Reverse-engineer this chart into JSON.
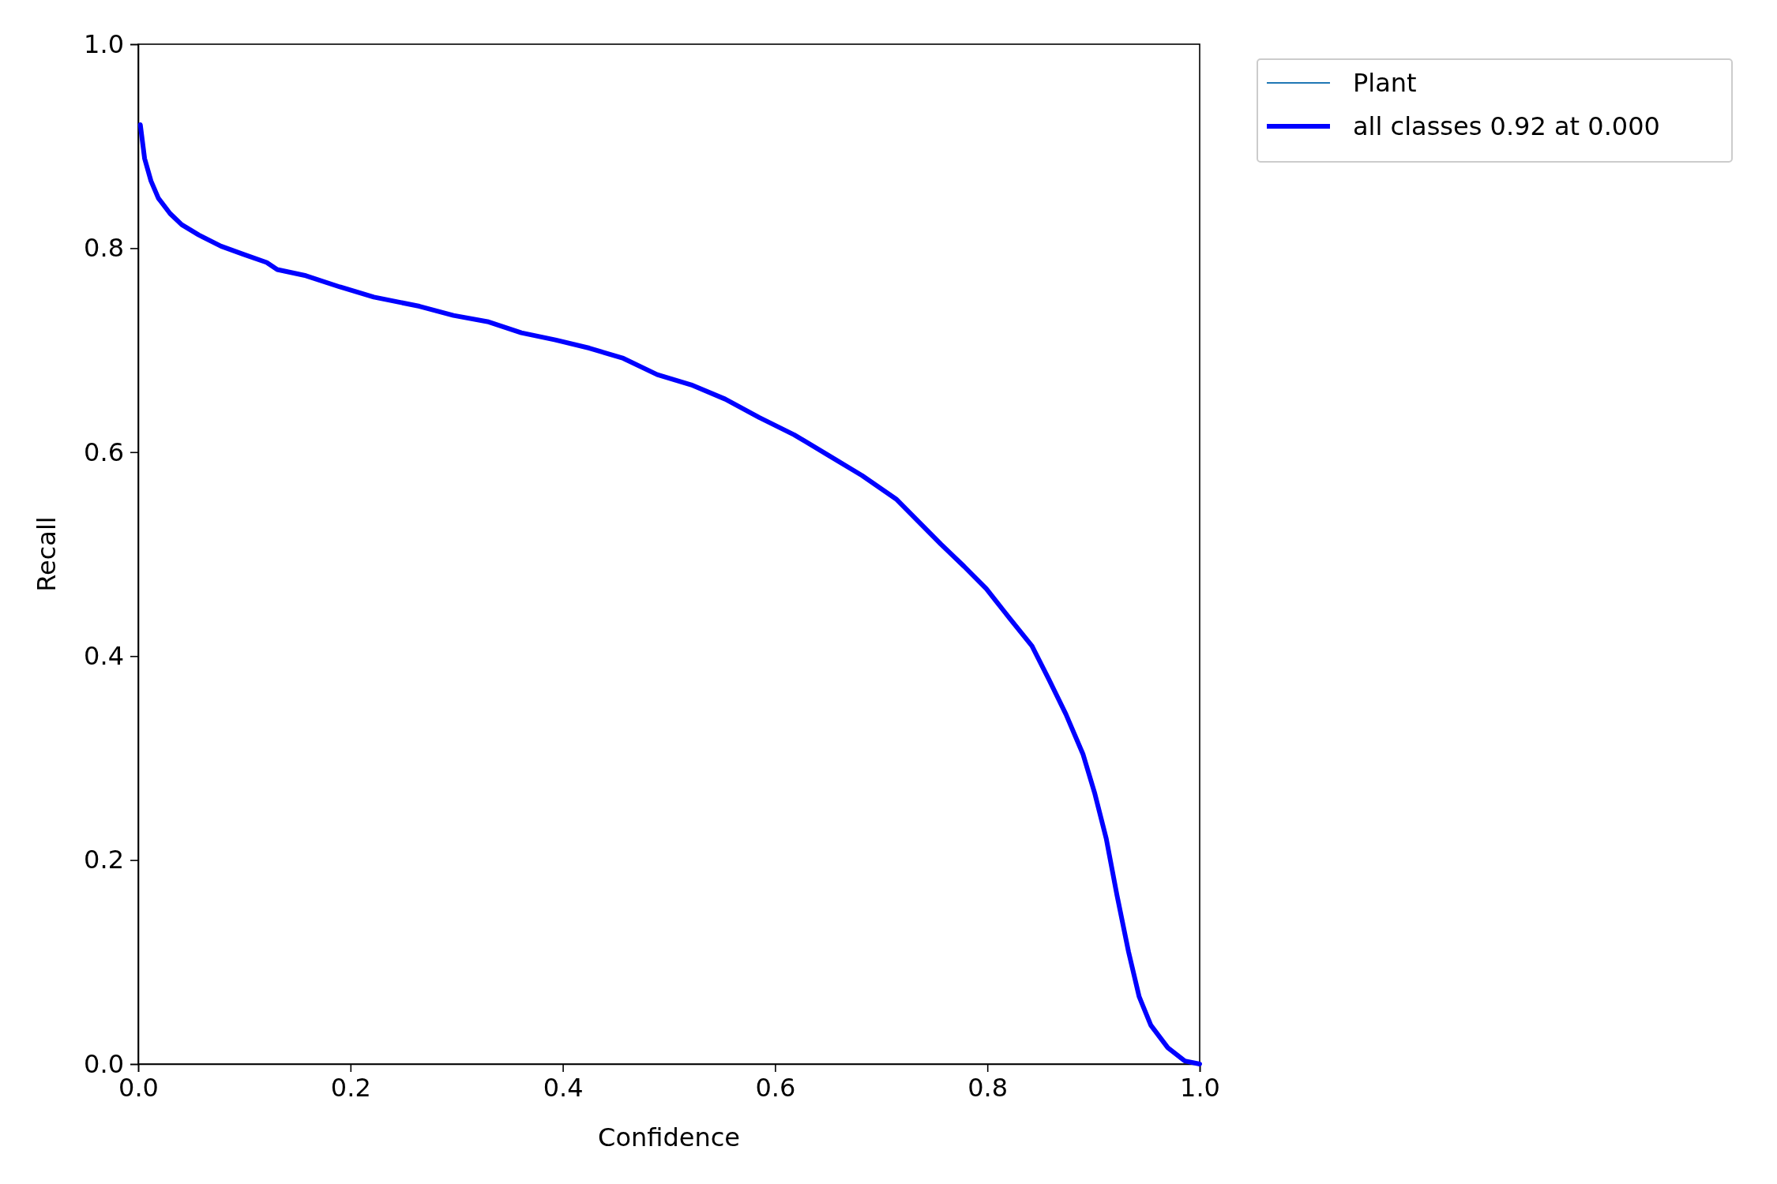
{
  "chart_data": {
    "type": "line",
    "xlabel": "Confidence",
    "ylabel": "Recall",
    "x": [
      0.002,
      0.006,
      0.012,
      0.019,
      0.03,
      0.041,
      0.057,
      0.078,
      0.099,
      0.121,
      0.131,
      0.158,
      0.19,
      0.222,
      0.265,
      0.297,
      0.329,
      0.361,
      0.393,
      0.425,
      0.457,
      0.489,
      0.521,
      0.553,
      0.585,
      0.618,
      0.65,
      0.682,
      0.714,
      0.735,
      0.756,
      0.778,
      0.799,
      0.821,
      0.842,
      0.858,
      0.874,
      0.89,
      0.901,
      0.912,
      0.922,
      0.933,
      0.943,
      0.954,
      0.97,
      0.986,
      1.0
    ],
    "series": [
      {
        "name": "Plant",
        "color": "#1f77b4",
        "values": [
          null,
          null,
          null,
          null,
          null,
          null,
          null,
          null,
          null,
          null,
          null,
          null,
          null,
          null,
          null,
          null,
          null,
          null,
          null,
          null,
          null,
          null,
          null,
          null,
          null,
          null,
          null,
          null,
          null,
          null,
          null,
          null,
          null,
          null,
          null,
          null,
          null,
          null,
          null,
          null,
          null,
          null,
          null,
          null,
          null,
          null,
          null
        ]
      },
      {
        "name": "all classes 0.92 at 0.000",
        "color": "#0000ff",
        "values": [
          0.921,
          0.888,
          0.866,
          0.849,
          0.834,
          0.823,
          0.813,
          0.802,
          0.794,
          0.786,
          0.779,
          0.773,
          0.762,
          0.752,
          0.743,
          0.734,
          0.728,
          0.717,
          0.71,
          0.702,
          0.692,
          0.676,
          0.666,
          0.652,
          0.634,
          0.617,
          0.597,
          0.577,
          0.554,
          0.532,
          0.51,
          0.488,
          0.466,
          0.437,
          0.41,
          0.377,
          0.343,
          0.304,
          0.266,
          0.221,
          0.166,
          0.11,
          0.066,
          0.038,
          0.016,
          0.003,
          0.0
        ]
      }
    ],
    "xlim": [
      0,
      1
    ],
    "ylim": [
      0,
      1
    ],
    "xticks": [
      {
        "value": 0,
        "label": "0.0"
      },
      0.2,
      0.4,
      0.6,
      0.8,
      {
        "value": 1,
        "label": "1.0"
      }
    ],
    "yticks": [
      {
        "value": 0,
        "label": "0.0"
      },
      0.2,
      0.4,
      0.6,
      0.8,
      {
        "value": 1,
        "label": "1.0"
      }
    ],
    "grid": false,
    "legend": "top right",
    "marker": "none",
    "line_style": "solid"
  }
}
